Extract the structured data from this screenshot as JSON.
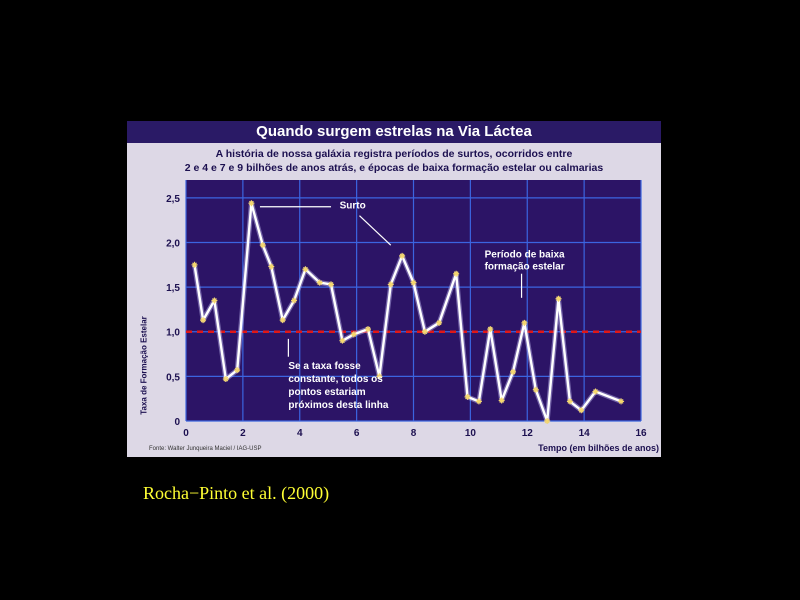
{
  "chart_data": {
    "type": "line",
    "title": "Quando surgem estrelas na Via Láctea",
    "subtitle_lines": [
      "A história de nossa galáxia registra períodos de surtos, ocorridos entre",
      "2 e 4 e 7 e 9 bilhões de anos atrás, e épocas de baixa formação estelar ou calmarias"
    ],
    "xlabel": "Tempo (em bilhões de anos)",
    "ylabel": "Taxa de Formação Estelar",
    "xlim": [
      0,
      16
    ],
    "ylim": [
      0,
      2.7
    ],
    "xticks": [
      0,
      2,
      4,
      6,
      8,
      10,
      12,
      14,
      16
    ],
    "yticks": [
      0,
      0.5,
      1.0,
      1.5,
      2.0,
      2.5
    ],
    "ytick_labels": [
      "0",
      "0,5",
      "1,0",
      "1,5",
      "2,0",
      "2,5"
    ],
    "grid": true,
    "reference_line": 1.0,
    "x": [
      0.3,
      0.6,
      1.0,
      1.4,
      1.8,
      2.3,
      2.7,
      3.0,
      3.4,
      3.8,
      4.2,
      4.7,
      5.1,
      5.5,
      5.9,
      6.4,
      6.8,
      7.2,
      7.6,
      8.0,
      8.4,
      8.9,
      9.5,
      9.9,
      10.3,
      10.7,
      11.1,
      11.5,
      11.9,
      12.3,
      12.7,
      13.1,
      13.5,
      13.9,
      14.4,
      15.3
    ],
    "y": [
      1.75,
      1.13,
      1.35,
      0.47,
      0.57,
      2.44,
      1.97,
      1.73,
      1.13,
      1.35,
      1.7,
      1.55,
      1.53,
      0.9,
      0.97,
      1.03,
      0.5,
      1.53,
      1.85,
      1.55,
      1.0,
      1.1,
      1.65,
      0.27,
      0.22,
      1.03,
      0.23,
      0.55,
      1.1,
      0.35,
      0.0,
      1.37,
      0.22,
      0.12,
      0.33,
      0.22
    ],
    "annotations": [
      {
        "text": "Surto"
      },
      {
        "lines": [
          "Período de baixa",
          "formação estelar"
        ]
      },
      {
        "lines": [
          "Se a taxa fosse",
          "constante, todos os",
          "pontos estariam",
          "próximos desta linha"
        ]
      }
    ],
    "source": "Fonte: Walter Junqueira Maciel / IAG-USP",
    "colors": {
      "plot_bg": "#2c1466",
      "grid": "#3b64e0",
      "line": "#ffffff",
      "reference": "#e01818",
      "title_bar": "#2a1a66",
      "panel": "#ddd8e6",
      "marker": "#f5d76e"
    }
  },
  "citation": "Rocha−Pinto et al. (2000)"
}
